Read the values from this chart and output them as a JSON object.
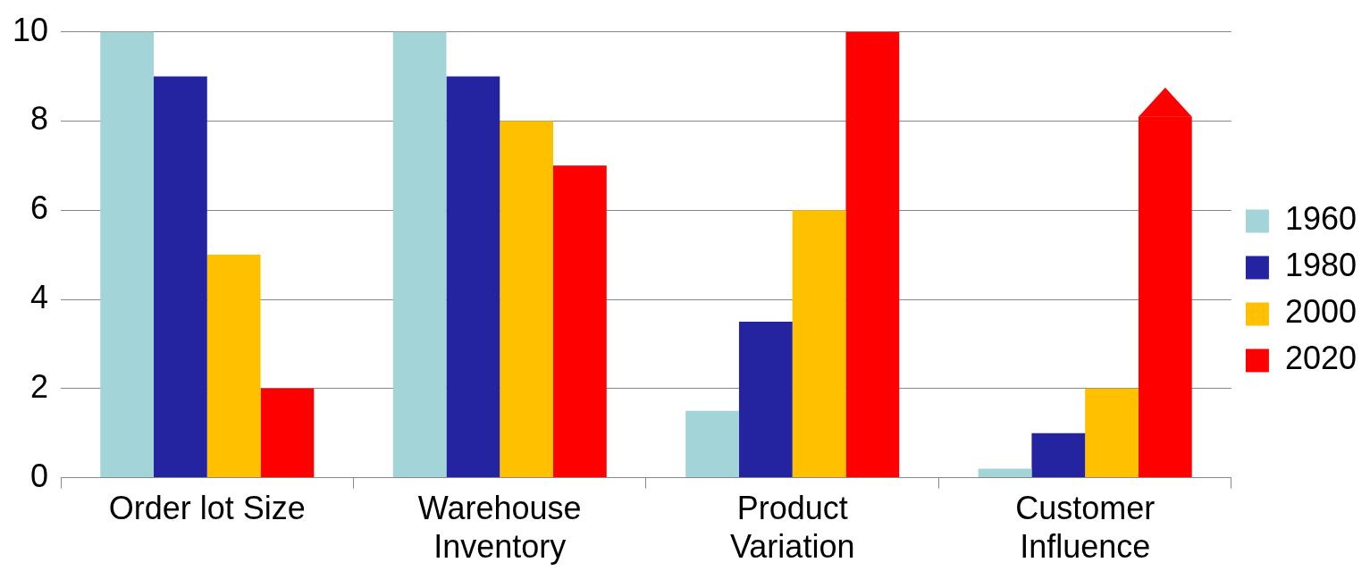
{
  "chart_data": {
    "type": "bar",
    "categories": [
      "Order lot Size",
      "Warehouse Inventory",
      "Product Variation",
      "Customer Influence"
    ],
    "series": [
      {
        "name": "1960",
        "color": "#a3d4d8",
        "values": [
          10,
          10,
          1.5,
          0.2
        ]
      },
      {
        "name": "1980",
        "color": "#2424a0",
        "values": [
          9,
          9,
          3.5,
          1
        ]
      },
      {
        "name": "2000",
        "color": "#ffc000",
        "values": [
          5,
          8,
          6,
          2
        ]
      },
      {
        "name": "2020",
        "color": "#ff0000",
        "values": [
          2,
          7,
          10,
          8.1
        ]
      }
    ],
    "ylim": [
      0,
      10
    ],
    "yticks": [
      0,
      2,
      4,
      6,
      8,
      10
    ],
    "grid": "y",
    "legend": "right"
  }
}
